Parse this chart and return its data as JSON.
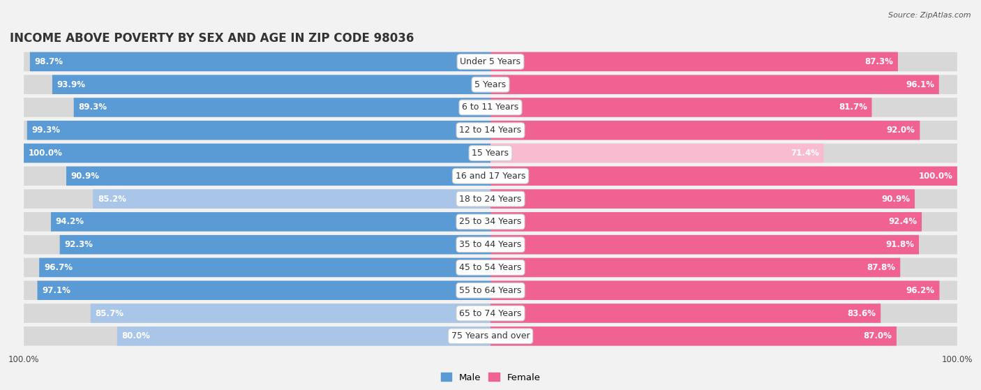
{
  "title": "INCOME ABOVE POVERTY BY SEX AND AGE IN ZIP CODE 98036",
  "source": "Source: ZipAtlas.com",
  "categories": [
    "Under 5 Years",
    "5 Years",
    "6 to 11 Years",
    "12 to 14 Years",
    "15 Years",
    "16 and 17 Years",
    "18 to 24 Years",
    "25 to 34 Years",
    "35 to 44 Years",
    "45 to 54 Years",
    "55 to 64 Years",
    "65 to 74 Years",
    "75 Years and over"
  ],
  "male_values": [
    98.7,
    93.9,
    89.3,
    99.3,
    100.0,
    90.9,
    85.2,
    94.2,
    92.3,
    96.7,
    97.1,
    85.7,
    80.0
  ],
  "female_values": [
    87.3,
    96.1,
    81.7,
    92.0,
    71.4,
    100.0,
    90.9,
    92.4,
    91.8,
    87.8,
    96.2,
    83.6,
    87.0
  ],
  "male_color_dark": "#5b9bd5",
  "male_color_light": "#a9c6e8",
  "female_color_dark": "#f06292",
  "female_color_light": "#f8bbd0",
  "row_bg_color": "#d8d8d8",
  "background_color": "#f2f2f2",
  "title_fontsize": 12,
  "label_fontsize": 9,
  "value_fontsize": 8.5,
  "max_value": 100.0
}
